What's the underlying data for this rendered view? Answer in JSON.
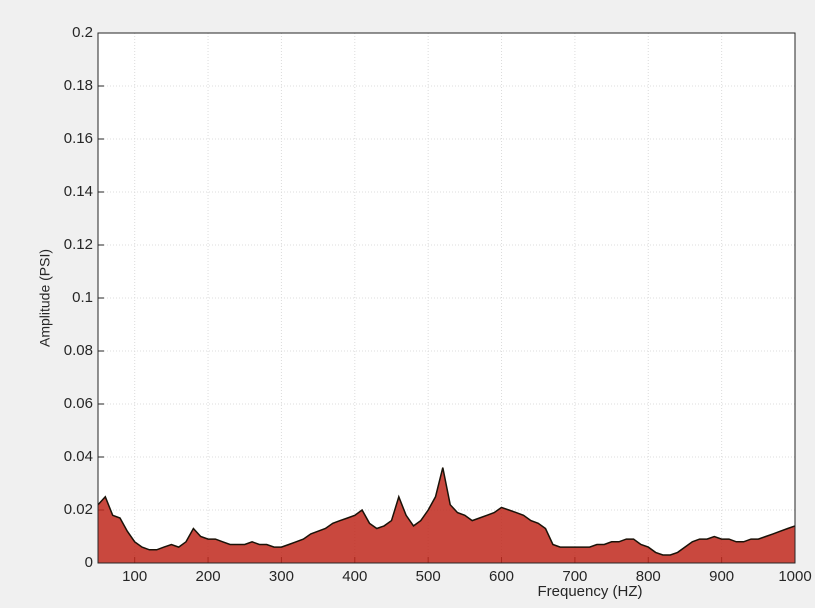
{
  "chart_data": {
    "type": "area",
    "x_label": "Frequency (HZ)",
    "y_label": "Amplitude (PSI)",
    "x": [
      50,
      60,
      70,
      80,
      90,
      100,
      110,
      120,
      130,
      140,
      150,
      160,
      170,
      180,
      190,
      200,
      210,
      220,
      230,
      240,
      250,
      260,
      270,
      280,
      290,
      300,
      310,
      320,
      330,
      340,
      350,
      360,
      370,
      380,
      390,
      400,
      410,
      420,
      430,
      440,
      450,
      460,
      470,
      480,
      490,
      500,
      510,
      520,
      530,
      540,
      550,
      560,
      570,
      580,
      590,
      600,
      610,
      620,
      630,
      640,
      650,
      660,
      670,
      680,
      690,
      700,
      710,
      720,
      730,
      740,
      750,
      760,
      770,
      780,
      790,
      800,
      810,
      820,
      830,
      840,
      850,
      860,
      870,
      880,
      890,
      900,
      910,
      920,
      930,
      940,
      950,
      960,
      970,
      980,
      990,
      1000
    ],
    "series": [
      {
        "color": "#1a1208",
        "fill": "#c0281c",
        "values": [
          0.022,
          0.025,
          0.018,
          0.017,
          0.012,
          0.008,
          0.006,
          0.005,
          0.005,
          0.006,
          0.007,
          0.006,
          0.008,
          0.013,
          0.01,
          0.009,
          0.009,
          0.008,
          0.007,
          0.007,
          0.007,
          0.008,
          0.007,
          0.007,
          0.006,
          0.006,
          0.007,
          0.008,
          0.009,
          0.011,
          0.012,
          0.013,
          0.015,
          0.016,
          0.017,
          0.018,
          0.02,
          0.015,
          0.013,
          0.014,
          0.016,
          0.025,
          0.018,
          0.014,
          0.016,
          0.02,
          0.025,
          0.036,
          0.022,
          0.019,
          0.018,
          0.016,
          0.017,
          0.018,
          0.019,
          0.021,
          0.02,
          0.019,
          0.018,
          0.016,
          0.015,
          0.013,
          0.007,
          0.006,
          0.006,
          0.006,
          0.006,
          0.006,
          0.007,
          0.007,
          0.008,
          0.008,
          0.009,
          0.009,
          0.007,
          0.006,
          0.004,
          0.003,
          0.003,
          0.004,
          0.006,
          0.008,
          0.009,
          0.009,
          0.01,
          0.009,
          0.009,
          0.008,
          0.008,
          0.009,
          0.009,
          0.01,
          0.011,
          0.012,
          0.013,
          0.014
        ]
      }
    ],
    "xlim": [
      50,
      1000
    ],
    "xticks": [
      100,
      200,
      300,
      400,
      500,
      600,
      700,
      800,
      900,
      1000
    ],
    "ylim": [
      0,
      0.2
    ],
    "yticks": [
      0,
      0.02,
      0.04,
      0.06,
      0.08,
      0.1,
      0.12,
      0.14,
      0.16,
      0.18,
      0.2
    ],
    "grid": true
  }
}
